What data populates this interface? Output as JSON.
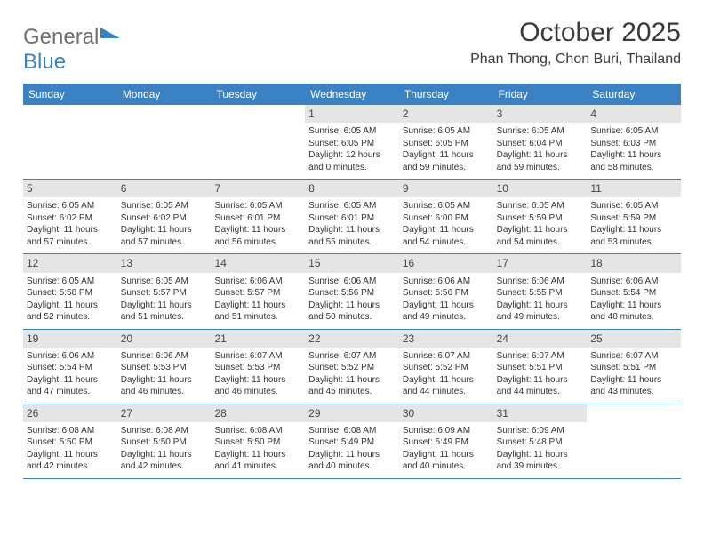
{
  "logo": {
    "part1": "General",
    "part2": "Blue"
  },
  "title": "October 2025",
  "location": "Phan Thong, Chon Buri, Thailand",
  "weekdays": [
    "Sunday",
    "Monday",
    "Tuesday",
    "Wednesday",
    "Thursday",
    "Friday",
    "Saturday"
  ],
  "colors": {
    "header_bg": "#3a82c4",
    "daynum_bg": "#e5e5e5",
    "text": "#333333",
    "title": "#3a3a3a"
  },
  "typography": {
    "title_fontsize": 30,
    "location_fontsize": 16,
    "weekday_fontsize": 12,
    "daynum_fontsize": 12,
    "body_fontsize": 10
  },
  "weeks": [
    [
      {
        "n": "",
        "lines": []
      },
      {
        "n": "",
        "lines": []
      },
      {
        "n": "",
        "lines": []
      },
      {
        "n": "1",
        "lines": [
          "Sunrise: 6:05 AM",
          "Sunset: 6:05 PM",
          "Daylight: 12 hours and 0 minutes."
        ]
      },
      {
        "n": "2",
        "lines": [
          "Sunrise: 6:05 AM",
          "Sunset: 6:05 PM",
          "Daylight: 11 hours and 59 minutes."
        ]
      },
      {
        "n": "3",
        "lines": [
          "Sunrise: 6:05 AM",
          "Sunset: 6:04 PM",
          "Daylight: 11 hours and 59 minutes."
        ]
      },
      {
        "n": "4",
        "lines": [
          "Sunrise: 6:05 AM",
          "Sunset: 6:03 PM",
          "Daylight: 11 hours and 58 minutes."
        ]
      }
    ],
    [
      {
        "n": "5",
        "lines": [
          "Sunrise: 6:05 AM",
          "Sunset: 6:02 PM",
          "Daylight: 11 hours and 57 minutes."
        ]
      },
      {
        "n": "6",
        "lines": [
          "Sunrise: 6:05 AM",
          "Sunset: 6:02 PM",
          "Daylight: 11 hours and 57 minutes."
        ]
      },
      {
        "n": "7",
        "lines": [
          "Sunrise: 6:05 AM",
          "Sunset: 6:01 PM",
          "Daylight: 11 hours and 56 minutes."
        ]
      },
      {
        "n": "8",
        "lines": [
          "Sunrise: 6:05 AM",
          "Sunset: 6:01 PM",
          "Daylight: 11 hours and 55 minutes."
        ]
      },
      {
        "n": "9",
        "lines": [
          "Sunrise: 6:05 AM",
          "Sunset: 6:00 PM",
          "Daylight: 11 hours and 54 minutes."
        ]
      },
      {
        "n": "10",
        "lines": [
          "Sunrise: 6:05 AM",
          "Sunset: 5:59 PM",
          "Daylight: 11 hours and 54 minutes."
        ]
      },
      {
        "n": "11",
        "lines": [
          "Sunrise: 6:05 AM",
          "Sunset: 5:59 PM",
          "Daylight: 11 hours and 53 minutes."
        ]
      }
    ],
    [
      {
        "n": "12",
        "lines": [
          "Sunrise: 6:05 AM",
          "Sunset: 5:58 PM",
          "Daylight: 11 hours and 52 minutes."
        ]
      },
      {
        "n": "13",
        "lines": [
          "Sunrise: 6:05 AM",
          "Sunset: 5:57 PM",
          "Daylight: 11 hours and 51 minutes."
        ]
      },
      {
        "n": "14",
        "lines": [
          "Sunrise: 6:06 AM",
          "Sunset: 5:57 PM",
          "Daylight: 11 hours and 51 minutes."
        ]
      },
      {
        "n": "15",
        "lines": [
          "Sunrise: 6:06 AM",
          "Sunset: 5:56 PM",
          "Daylight: 11 hours and 50 minutes."
        ]
      },
      {
        "n": "16",
        "lines": [
          "Sunrise: 6:06 AM",
          "Sunset: 5:56 PM",
          "Daylight: 11 hours and 49 minutes."
        ]
      },
      {
        "n": "17",
        "lines": [
          "Sunrise: 6:06 AM",
          "Sunset: 5:55 PM",
          "Daylight: 11 hours and 49 minutes."
        ]
      },
      {
        "n": "18",
        "lines": [
          "Sunrise: 6:06 AM",
          "Sunset: 5:54 PM",
          "Daylight: 11 hours and 48 minutes."
        ]
      }
    ],
    [
      {
        "n": "19",
        "lines": [
          "Sunrise: 6:06 AM",
          "Sunset: 5:54 PM",
          "Daylight: 11 hours and 47 minutes."
        ]
      },
      {
        "n": "20",
        "lines": [
          "Sunrise: 6:06 AM",
          "Sunset: 5:53 PM",
          "Daylight: 11 hours and 46 minutes."
        ]
      },
      {
        "n": "21",
        "lines": [
          "Sunrise: 6:07 AM",
          "Sunset: 5:53 PM",
          "Daylight: 11 hours and 46 minutes."
        ]
      },
      {
        "n": "22",
        "lines": [
          "Sunrise: 6:07 AM",
          "Sunset: 5:52 PM",
          "Daylight: 11 hours and 45 minutes."
        ]
      },
      {
        "n": "23",
        "lines": [
          "Sunrise: 6:07 AM",
          "Sunset: 5:52 PM",
          "Daylight: 11 hours and 44 minutes."
        ]
      },
      {
        "n": "24",
        "lines": [
          "Sunrise: 6:07 AM",
          "Sunset: 5:51 PM",
          "Daylight: 11 hours and 44 minutes."
        ]
      },
      {
        "n": "25",
        "lines": [
          "Sunrise: 6:07 AM",
          "Sunset: 5:51 PM",
          "Daylight: 11 hours and 43 minutes."
        ]
      }
    ],
    [
      {
        "n": "26",
        "lines": [
          "Sunrise: 6:08 AM",
          "Sunset: 5:50 PM",
          "Daylight: 11 hours and 42 minutes."
        ]
      },
      {
        "n": "27",
        "lines": [
          "Sunrise: 6:08 AM",
          "Sunset: 5:50 PM",
          "Daylight: 11 hours and 42 minutes."
        ]
      },
      {
        "n": "28",
        "lines": [
          "Sunrise: 6:08 AM",
          "Sunset: 5:50 PM",
          "Daylight: 11 hours and 41 minutes."
        ]
      },
      {
        "n": "29",
        "lines": [
          "Sunrise: 6:08 AM",
          "Sunset: 5:49 PM",
          "Daylight: 11 hours and 40 minutes."
        ]
      },
      {
        "n": "30",
        "lines": [
          "Sunrise: 6:09 AM",
          "Sunset: 5:49 PM",
          "Daylight: 11 hours and 40 minutes."
        ]
      },
      {
        "n": "31",
        "lines": [
          "Sunrise: 6:09 AM",
          "Sunset: 5:48 PM",
          "Daylight: 11 hours and 39 minutes."
        ]
      },
      {
        "n": "",
        "lines": []
      }
    ]
  ]
}
